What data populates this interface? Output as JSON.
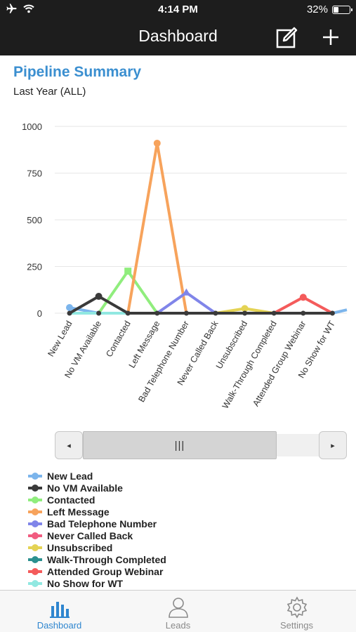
{
  "status_bar": {
    "time": "4:14 PM",
    "battery": "32%",
    "battery_level": 0.32
  },
  "nav": {
    "title": "Dashboard"
  },
  "chart_data": {
    "type": "line",
    "title": "Pipeline Summary",
    "subtitle": "Last Year (ALL)",
    "ylim": [
      0,
      1000
    ],
    "yticks": [
      "0",
      "250",
      "500",
      "750",
      "1000"
    ],
    "grid": true,
    "legend_position": "bottom-left",
    "categories": [
      "New Lead",
      "No VM Available",
      "Contacted",
      "Left Message",
      "Bad Telephone Number",
      "Never Called Back",
      "Unsubscribed",
      "Walk-Through Completed",
      "Attended Group Webinar",
      "No Show for WT"
    ],
    "series": [
      {
        "name": "New Lead",
        "color": "#7cb5ec",
        "values": [
          30,
          0,
          0,
          0,
          0,
          0,
          0,
          0,
          0,
          0
        ]
      },
      {
        "name": "No VM Available",
        "color": "#3a3a3a",
        "values": [
          0,
          90,
          0,
          0,
          0,
          0,
          0,
          0,
          0,
          0
        ]
      },
      {
        "name": "Contacted",
        "color": "#90ed7d",
        "values": [
          0,
          0,
          225,
          0,
          0,
          0,
          0,
          0,
          0,
          0
        ]
      },
      {
        "name": "Left Message",
        "color": "#f7a35c",
        "values": [
          0,
          0,
          0,
          910,
          0,
          0,
          0,
          0,
          0,
          0
        ]
      },
      {
        "name": "Bad Telephone Number",
        "color": "#8085e9",
        "values": [
          0,
          0,
          0,
          0,
          110,
          0,
          0,
          0,
          0,
          0
        ]
      },
      {
        "name": "Never Called Back",
        "color": "#f15c80",
        "values": [
          0,
          0,
          0,
          0,
          0,
          0,
          0,
          0,
          0,
          0
        ]
      },
      {
        "name": "Unsubscribed",
        "color": "#e4d354",
        "values": [
          0,
          0,
          0,
          0,
          0,
          0,
          25,
          0,
          0,
          0
        ]
      },
      {
        "name": "Walk-Through Completed",
        "color": "#2b908f",
        "values": [
          0,
          0,
          0,
          0,
          0,
          0,
          0,
          0,
          0,
          0
        ]
      },
      {
        "name": "Attended Group Webinar",
        "color": "#f45b5b",
        "values": [
          0,
          0,
          0,
          0,
          0,
          0,
          0,
          0,
          85,
          0
        ]
      },
      {
        "name": "No Show for WT",
        "color": "#91e8e1",
        "values": [
          0,
          0,
          0,
          0,
          0,
          0,
          0,
          0,
          0,
          0
        ]
      }
    ],
    "offscreen_series_hint": {
      "color": "#7cb5ec",
      "next_value": 60
    }
  },
  "scrollbar": {
    "left_arrow": "◂",
    "right_arrow": "▸",
    "grip": "|||"
  },
  "tabs": [
    {
      "label": "Dashboard",
      "icon": "bar-chart-icon",
      "active": true
    },
    {
      "label": "Leads",
      "icon": "person-icon",
      "active": false
    },
    {
      "label": "Settings",
      "icon": "gear-icon",
      "active": false
    }
  ],
  "colors": {
    "accent": "#2f86cf",
    "title_blue": "#3b8fd0",
    "nav_bg": "#1d1d1d"
  }
}
